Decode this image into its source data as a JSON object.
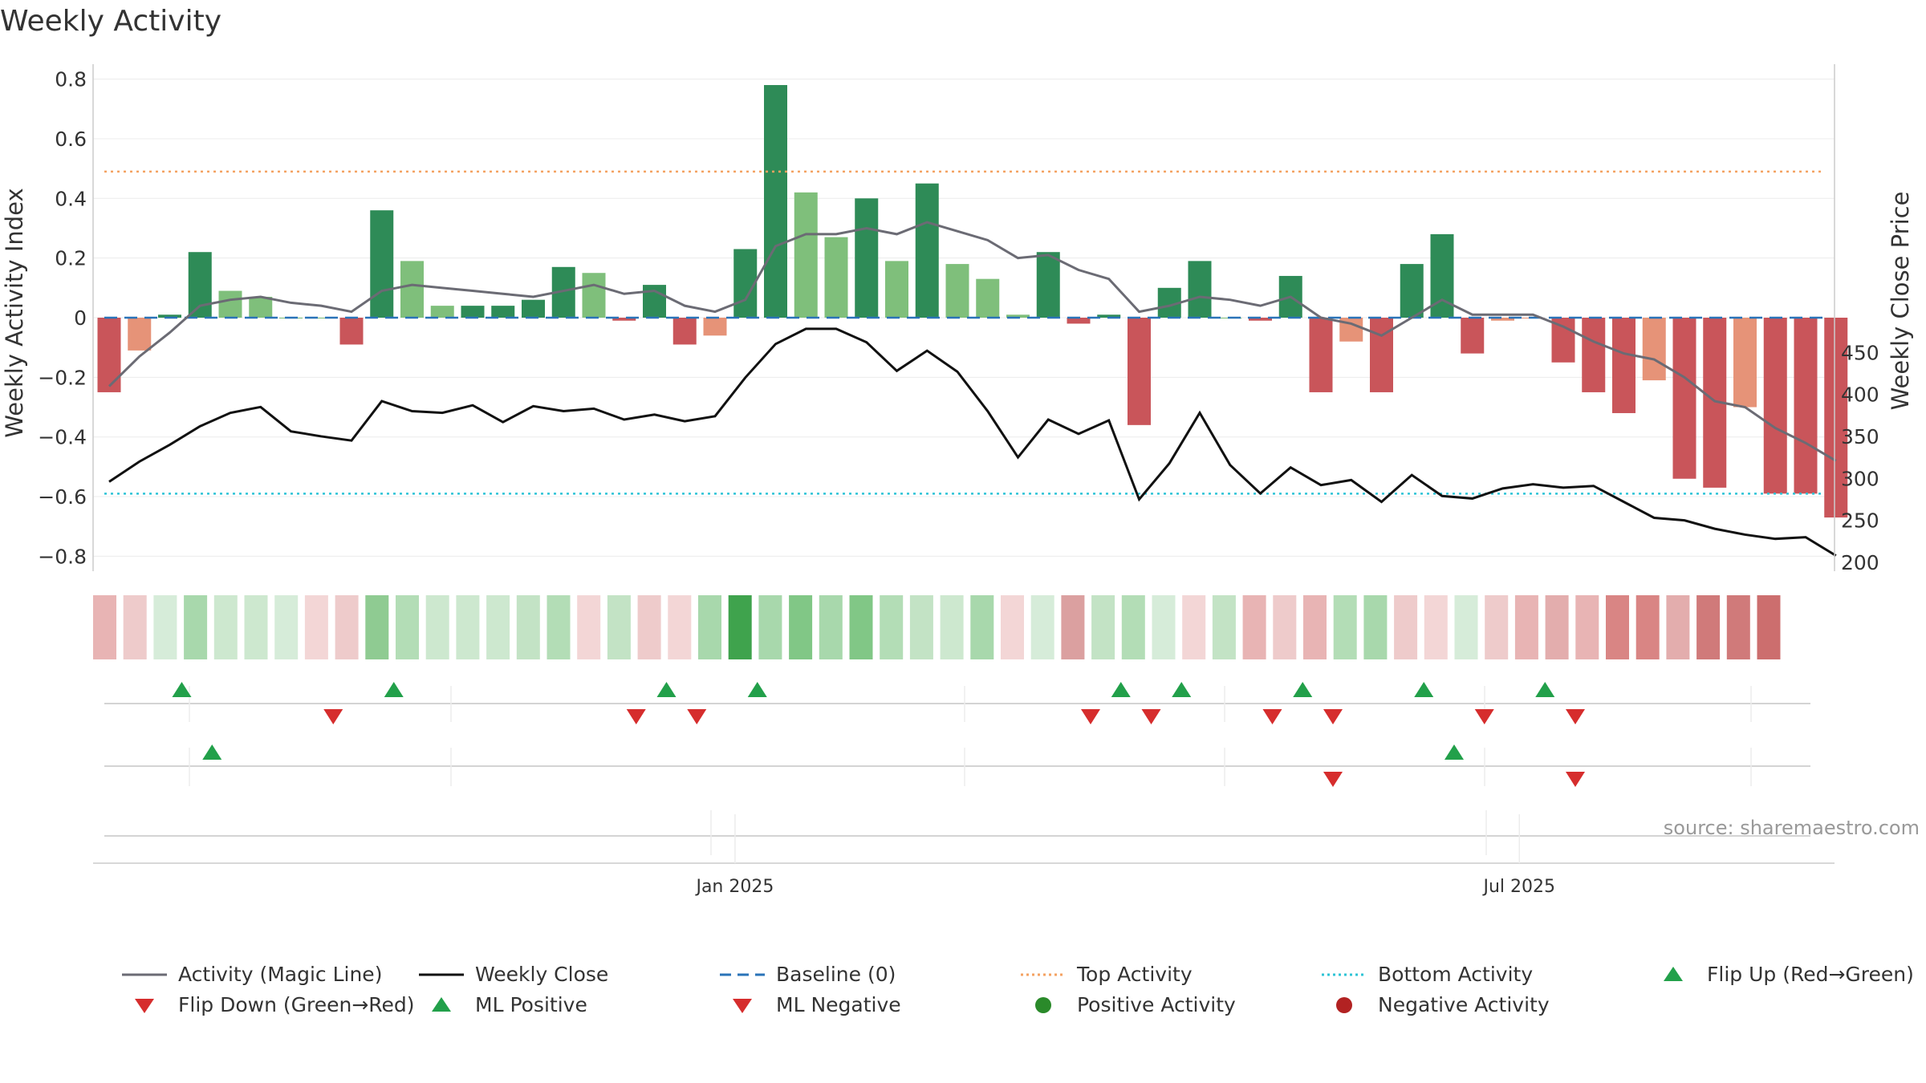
{
  "chart_data": {
    "type": "bar",
    "title": "Weekly Activity",
    "ylabel": "Weekly Activity Index",
    "y2label": "Weekly Close Price",
    "ylim": [
      -0.85,
      0.85
    ],
    "y2lim": [
      200,
      490
    ],
    "yticks": [
      0.8,
      0.6,
      0.4,
      0.2,
      0,
      -0.2,
      -0.4,
      -0.6,
      -0.8
    ],
    "ytick_labels": [
      "0.8",
      "0.6",
      "0.4",
      "0.2",
      "0",
      "−0.2",
      "−0.4",
      "−0.6",
      "−0.8"
    ],
    "y2ticks": [
      450,
      400,
      350,
      300,
      250,
      200
    ],
    "xtick_labels": [
      {
        "label": "Jan 2025",
        "week": 20.66
      },
      {
        "label": "Jul 2025",
        "week": 46.55
      }
    ],
    "top_activity": 0.49,
    "bottom_activity": -0.59,
    "baseline": 0,
    "series": [
      {
        "name": "Activity",
        "type": "bar",
        "values": [
          -0.25,
          -0.11,
          0.01,
          0.22,
          0.09,
          0.07,
          0.0,
          0.0,
          -0.09,
          0.36,
          0.19,
          0.04,
          0.04,
          0.04,
          0.06,
          0.17,
          0.15,
          -0.01,
          0.11,
          -0.09,
          -0.06,
          0.23,
          0.78,
          0.42,
          0.27,
          0.4,
          0.19,
          0.45,
          0.18,
          0.13,
          0.01,
          0.22,
          -0.02,
          0.01,
          -0.36,
          0.1,
          0.19,
          0.0,
          -0.01,
          0.14,
          -0.25,
          -0.08,
          -0.25,
          0.18,
          0.28,
          -0.12,
          -0.01,
          0.0,
          -0.15,
          -0.25,
          -0.32,
          -0.21,
          -0.54,
          -0.57,
          -0.3,
          -0.59,
          -0.59,
          -0.67
        ],
        "bar_colors": [
          "#c9555a",
          "#e69378",
          "#2e8b57",
          "#2e8b57",
          "#7fbf7b",
          "#7fbf7b",
          "#7fbf7b",
          "#7fbf7b",
          "#c9555a",
          "#2e8b57",
          "#7fbf7b",
          "#7fbf7b",
          "#2e8b57",
          "#2e8b57",
          "#2e8b57",
          "#2e8b57",
          "#7fbf7b",
          "#c9555a",
          "#2e8b57",
          "#c9555a",
          "#e69378",
          "#2e8b57",
          "#2e8b57",
          "#7fbf7b",
          "#7fbf7b",
          "#2e8b57",
          "#7fbf7b",
          "#2e8b57",
          "#7fbf7b",
          "#7fbf7b",
          "#7fbf7b",
          "#2e8b57",
          "#c9555a",
          "#2e8b57",
          "#c9555a",
          "#2e8b57",
          "#2e8b57",
          "#7fbf7b",
          "#c9555a",
          "#2e8b57",
          "#c9555a",
          "#e69378",
          "#c9555a",
          "#2e8b57",
          "#2e8b57",
          "#c9555a",
          "#e69378",
          "#e69378",
          "#c9555a",
          "#c9555a",
          "#c9555a",
          "#e69378",
          "#c9555a",
          "#c9555a",
          "#e69378",
          "#c9555a",
          "#c9555a",
          "#c9555a"
        ]
      },
      {
        "name": "Activity (Magic Line)",
        "type": "line",
        "values": [
          -0.23,
          -0.13,
          -0.05,
          0.04,
          0.06,
          0.07,
          0.05,
          0.04,
          0.02,
          0.09,
          0.11,
          0.1,
          0.09,
          0.08,
          0.07,
          0.09,
          0.11,
          0.08,
          0.09,
          0.04,
          0.02,
          0.06,
          0.24,
          0.28,
          0.28,
          0.3,
          0.28,
          0.32,
          0.29,
          0.26,
          0.2,
          0.21,
          0.16,
          0.13,
          0.02,
          0.04,
          0.07,
          0.06,
          0.04,
          0.07,
          0.0,
          -0.02,
          -0.06,
          0.0,
          0.06,
          0.01,
          0.01,
          0.01,
          -0.03,
          -0.08,
          -0.12,
          -0.14,
          -0.2,
          -0.28,
          -0.3,
          -0.37,
          -0.42,
          -0.48
        ]
      },
      {
        "name": "Weekly Close",
        "type": "line",
        "axis": "right",
        "values": [
          296,
          320,
          340,
          362,
          378,
          385,
          356,
          350,
          345,
          392,
          380,
          378,
          387,
          367,
          386,
          380,
          383,
          370,
          376,
          368,
          374,
          420,
          460,
          478,
          478,
          462,
          428,
          452,
          427,
          380,
          325,
          370,
          353,
          369,
          275,
          318,
          378,
          316,
          282,
          313,
          292,
          298,
          272,
          304,
          279,
          276,
          288,
          293,
          289,
          291,
          272,
          253,
          250,
          240,
          233,
          228,
          230,
          208
        ]
      }
    ],
    "heat_strip": [
      "#e8b4b4",
      "#eecbcb",
      "#d6ecd9",
      "#a8d8ac",
      "#cde8cf",
      "#cde8cf",
      "#d6ecd9",
      "#f3d6d6",
      "#eecbcb",
      "#8fcb92",
      "#b3ddb6",
      "#cde8cf",
      "#cde8cf",
      "#cde8cf",
      "#c3e3c5",
      "#b3ddb6",
      "#f3d6d6",
      "#c3e3c5",
      "#eecbcb",
      "#f3d6d6",
      "#a8d8ac",
      "#3fa34d",
      "#a8d8ac",
      "#81c786",
      "#a8d8ac",
      "#81c786",
      "#b3ddb6",
      "#c3e3c5",
      "#cde8cf",
      "#a8d8ac",
      "#f3d6d6",
      "#d6ecd9",
      "#dba0a0",
      "#c3e3c5",
      "#b3ddb6",
      "#d6ecd9",
      "#f3d6d6",
      "#c3e3c5",
      "#e8b4b4",
      "#eecbcb",
      "#e8b4b4",
      "#b3ddb6",
      "#a8d8ac",
      "#eecbcb",
      "#f3d6d6",
      "#d6ecd9",
      "#eecbcb",
      "#e8b4b4",
      "#e3adad",
      "#e8b4b4",
      "#d98584",
      "#d98584",
      "#e3adad",
      "#d07a7a",
      "#d07a7a",
      "#cc6e6e"
    ],
    "flip_up": [
      2,
      9,
      18,
      21,
      33,
      35,
      39,
      43,
      47
    ],
    "flip_down": [
      7,
      17,
      19,
      32,
      34,
      38,
      40,
      45,
      48
    ],
    "ml_positive": [
      3,
      44
    ],
    "ml_negative": [
      40,
      48
    ],
    "source": "source: sharemaestro.com",
    "legend": [
      {
        "label": "Activity (Magic Line)",
        "symbol": "line",
        "color": "#6b6b74"
      },
      {
        "label": "Weekly Close",
        "symbol": "line",
        "color": "#111111"
      },
      {
        "label": "Baseline (0)",
        "symbol": "dashed",
        "color": "#2a73b8"
      },
      {
        "label": "Top Activity",
        "symbol": "dotted",
        "color": "#f4a261"
      },
      {
        "label": "Bottom Activity",
        "symbol": "dotted",
        "color": "#2ec4d6"
      },
      {
        "label": "Flip Up (Red→Green)",
        "symbol": "triangle-up",
        "color": "#22a04a"
      },
      {
        "label": "Flip Down (Green→Red)",
        "symbol": "triangle-down",
        "color": "#d62d2d"
      },
      {
        "label": "ML Positive",
        "symbol": "triangle-up",
        "color": "#22a04a"
      },
      {
        "label": "ML Negative",
        "symbol": "triangle-down",
        "color": "#d62d2d"
      },
      {
        "label": "Positive Activity",
        "symbol": "circle",
        "color": "#2a8a2a"
      },
      {
        "label": "Negative Activity",
        "symbol": "circle",
        "color": "#b22222"
      }
    ],
    "colors": {
      "axis": "#cccccc",
      "grid": "#ececec",
      "text": "#333333",
      "source": "#999999"
    }
  }
}
